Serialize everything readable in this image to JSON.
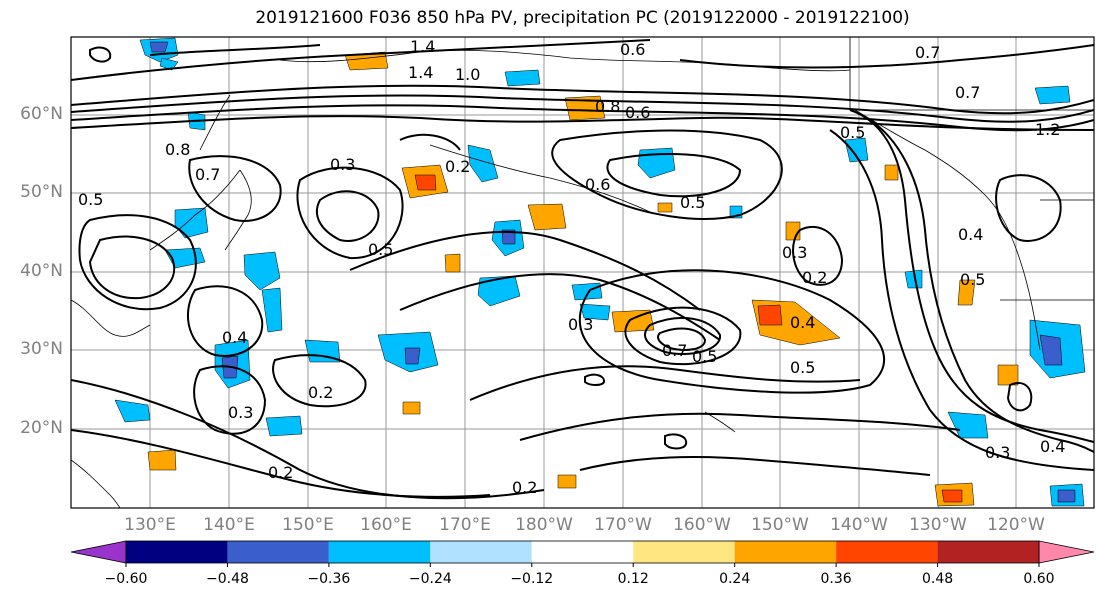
{
  "title": "2019121600 F036 850 hPa PV, precipitation PC (2019122000 - 2019122100)",
  "lat_labels": [
    "60°N",
    "50°N",
    "40°N",
    "30°N",
    "20°N"
  ],
  "lon_labels": [
    "130°E",
    "140°E",
    "150°E",
    "160°E",
    "170°E",
    "180°W",
    "170°W",
    "160°W",
    "150°W",
    "140°W",
    "130°W",
    "120°W"
  ],
  "contour_labels": [
    "1.4",
    "1.4",
    "1.0",
    "0.6",
    "0.8",
    "0.7",
    "0.7",
    "1.2",
    "0.5",
    "0.8",
    "0.7",
    "0.5",
    "0.3",
    "0.2",
    "0.6",
    "0.6",
    "0.5",
    "0.5",
    "0.4",
    "0.5",
    "0.3",
    "0.2",
    "0.4",
    "0.3",
    "0.2",
    "0.7",
    "0.5",
    "0.3",
    "0.4",
    "0.5",
    "0.3",
    "0.4",
    "0.2",
    "0.2"
  ],
  "colorbar": {
    "tick_labels": [
      "−0.60",
      "−0.48",
      "−0.36",
      "−0.24",
      "−0.12",
      "0.12",
      "0.24",
      "0.36",
      "0.48",
      "0.60"
    ],
    "colors": [
      "#9933cc",
      "#000080",
      "#3a5fcd",
      "#00bfff",
      "#b0e2ff",
      "#ffffff",
      "#ffe680",
      "#ffa500",
      "#ff4500",
      "#b22222",
      "#ff88aa"
    ]
  },
  "shade_colors": {
    "neg_light": "#b0e2ff",
    "neg_mid": "#00bfff",
    "neg_dark": "#3a5fcd",
    "neg_darker": "#000080",
    "pos_light": "#ffe680",
    "pos_mid": "#ffa500",
    "pos_dark": "#ff4500"
  }
}
